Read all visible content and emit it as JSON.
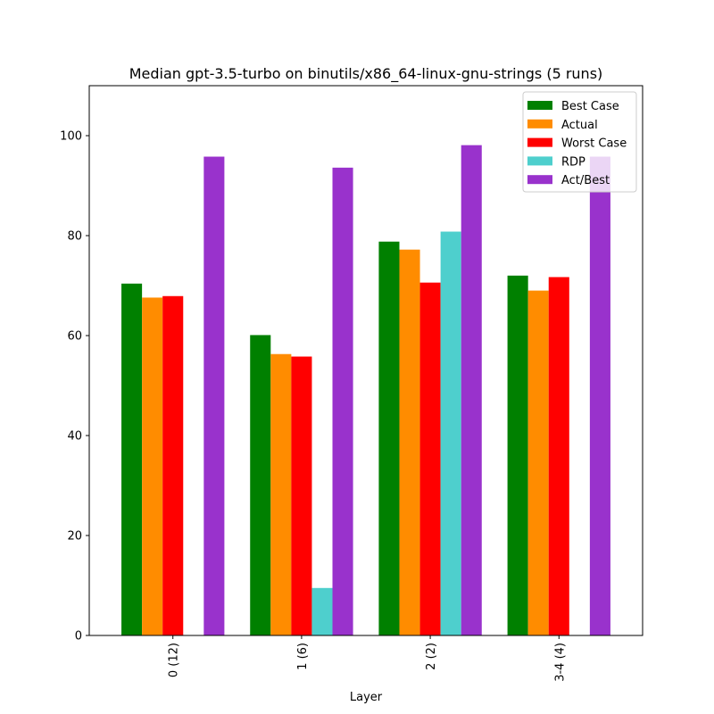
{
  "chart_data": {
    "type": "bar",
    "title": "Median gpt-3.5-turbo on binutils/x86_64-linux-gnu-strings (5 runs)",
    "xlabel": "Layer",
    "ylabel": "",
    "ylim": [
      0,
      110
    ],
    "yticks": [
      0,
      20,
      40,
      60,
      80,
      100
    ],
    "categories": [
      "0 (12)",
      "1 (6)",
      "2 (2)",
      "3-4 (4)"
    ],
    "series": [
      {
        "name": "Best Case",
        "color": "#008000",
        "values": [
          70.4,
          60.1,
          78.8,
          72.0
        ]
      },
      {
        "name": "Actual",
        "color": "#ff8c00",
        "values": [
          67.6,
          56.3,
          77.2,
          69.0
        ]
      },
      {
        "name": "Worst Case",
        "color": "#ff0000",
        "values": [
          67.9,
          55.8,
          70.6,
          71.7
        ]
      },
      {
        "name": "RDP",
        "color": "#4ecfcd",
        "values": [
          0,
          9.5,
          80.8,
          0
        ]
      },
      {
        "name": "Act/Best",
        "color": "#9932cc",
        "values": [
          95.8,
          93.6,
          98.1,
          95.8
        ]
      }
    ],
    "legend_position": "top-right",
    "grid": false
  }
}
